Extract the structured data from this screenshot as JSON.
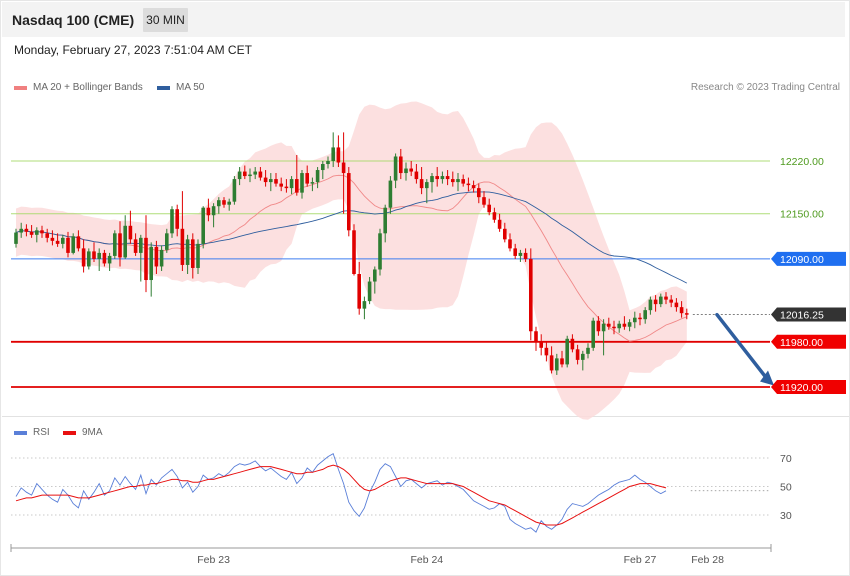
{
  "header": {
    "title": "Nasdaq 100 (CME)",
    "timeframe": "30 MIN"
  },
  "datetime": "Monday, February 27, 2023 7:51:04 AM CET",
  "legend": {
    "bollinger_label": "MA 20 + Bollinger Bands",
    "bollinger_color": "#f08080",
    "ma50_label": "MA 50",
    "ma50_color": "#2f5e9e",
    "copyright": "Research © 2023 Trading Central"
  },
  "rsi_legend": {
    "rsi_label": "RSI",
    "rsi_color": "#5a7fd8",
    "ma_label": "9MA",
    "ma_color": "#e81010"
  },
  "chart_data": [
    {
      "type": "candlestick",
      "title": "Nasdaq 100 (CME)",
      "ylim": [
        11880,
        12320
      ],
      "price_labels": {
        "r2": "12220.00",
        "r1": "12150.00",
        "pivot": "12090.00",
        "last": "12016.25",
        "s1": "11980.00",
        "s2": "11920.00"
      },
      "levels": [
        {
          "name": "r2",
          "value": 12220.0,
          "color": "#a6d96a",
          "label_color": "#4e9a1e",
          "style": "thin"
        },
        {
          "name": "r1",
          "value": 12150.0,
          "color": "#a6d96a",
          "label_color": "#4e9a1e",
          "style": "thin"
        },
        {
          "name": "pivot",
          "value": 12090.0,
          "color": "#3d7ef0",
          "label_color": "#ffffff",
          "box": "#1f6ff0",
          "style": "thin"
        },
        {
          "name": "last",
          "value": 12016.25,
          "color": "#555555",
          "label_color": "#ffffff",
          "box": "#333333",
          "style": "dotted"
        },
        {
          "name": "s1",
          "value": 11980.0,
          "color": "#e00000",
          "label_color": "#ffffff",
          "box": "#f00000",
          "style": "thick"
        },
        {
          "name": "s2",
          "value": 11920.0,
          "color": "#e00000",
          "label_color": "#ffffff",
          "box": "#f00000",
          "style": "thick"
        }
      ],
      "x_labels": [
        "Feb 23",
        "Feb 24",
        "Feb 27",
        "Feb 28"
      ],
      "x_label_index": [
        38,
        79,
        120,
        133
      ],
      "forecast_arrow": {
        "from_index": 135,
        "from_price": 12016,
        "to_index": 145,
        "to_price": 11922,
        "color": "#2f5e9e"
      },
      "candles": [
        [
          12110,
          12130,
          12105,
          12125
        ],
        [
          12125,
          12138,
          12118,
          12130
        ],
        [
          12130,
          12136,
          12120,
          12126
        ],
        [
          12126,
          12135,
          12118,
          12122
        ],
        [
          12122,
          12132,
          12112,
          12128
        ],
        [
          12128,
          12134,
          12118,
          12124
        ],
        [
          12124,
          12130,
          12112,
          12118
        ],
        [
          12118,
          12128,
          12108,
          12114
        ],
        [
          12114,
          12124,
          12106,
          12110
        ],
        [
          12110,
          12122,
          12104,
          12118
        ],
        [
          12118,
          12126,
          12092,
          12098
        ],
        [
          12098,
          12124,
          12096,
          12120
        ],
        [
          12120,
          12128,
          12100,
          12104
        ],
        [
          12104,
          12116,
          12072,
          12080
        ],
        [
          12080,
          12104,
          12076,
          12100
        ],
        [
          12100,
          12112,
          12086,
          12090
        ],
        [
          12090,
          12104,
          12074,
          12098
        ],
        [
          12098,
          12102,
          12080,
          12084
        ],
        [
          12084,
          12098,
          12074,
          12094
        ],
        [
          12094,
          12128,
          12090,
          12124
        ],
        [
          12124,
          12140,
          12080,
          12092
        ],
        [
          12092,
          12148,
          12090,
          12134
        ],
        [
          12134,
          12154,
          12110,
          12116
        ],
        [
          12116,
          12124,
          12094,
          12098
        ],
        [
          12098,
          12122,
          12060,
          12118
        ],
        [
          12118,
          12148,
          12046,
          12062
        ],
        [
          12062,
          12112,
          12040,
          12106
        ],
        [
          12106,
          12114,
          12070,
          12080
        ],
        [
          12080,
          12108,
          12074,
          12102
        ],
        [
          12102,
          12130,
          12098,
          12124
        ],
        [
          12124,
          12160,
          12118,
          12156
        ],
        [
          12156,
          12162,
          12120,
          12130
        ],
        [
          12130,
          12180,
          12074,
          12082
        ],
        [
          12082,
          12122,
          12070,
          12116
        ],
        [
          12116,
          12124,
          12064,
          12078
        ],
        [
          12078,
          12116,
          12070,
          12110
        ],
        [
          12110,
          12160,
          12104,
          12158
        ],
        [
          12158,
          12170,
          12140,
          12148
        ],
        [
          12148,
          12164,
          12132,
          12160
        ],
        [
          12160,
          12172,
          12150,
          12168
        ],
        [
          12168,
          12172,
          12158,
          12162
        ],
        [
          12162,
          12170,
          12154,
          12166
        ],
        [
          12166,
          12200,
          12162,
          12196
        ],
        [
          12196,
          12212,
          12188,
          12206
        ],
        [
          12206,
          12214,
          12196,
          12200
        ],
        [
          12200,
          12210,
          12192,
          12202
        ],
        [
          12202,
          12212,
          12196,
          12206
        ],
        [
          12206,
          12212,
          12194,
          12198
        ],
        [
          12198,
          12208,
          12186,
          12192
        ],
        [
          12192,
          12204,
          12180,
          12196
        ],
        [
          12196,
          12204,
          12186,
          12190
        ],
        [
          12190,
          12198,
          12180,
          12186
        ],
        [
          12186,
          12196,
          12178,
          12184
        ],
        [
          12184,
          12200,
          12176,
          12196
        ],
        [
          12196,
          12228,
          12174,
          12178
        ],
        [
          12178,
          12208,
          12170,
          12204
        ],
        [
          12204,
          12214,
          12186,
          12190
        ],
        [
          12190,
          12198,
          12180,
          12192
        ],
        [
          12192,
          12212,
          12184,
          12208
        ],
        [
          12208,
          12220,
          12196,
          12216
        ],
        [
          12216,
          12226,
          12210,
          12220
        ],
        [
          12220,
          12258,
          12212,
          12238
        ],
        [
          12238,
          12254,
          12212,
          12218
        ],
        [
          12218,
          12258,
          12150,
          12204
        ],
        [
          12204,
          12212,
          12120,
          12128
        ],
        [
          12128,
          12136,
          12068,
          12070
        ],
        [
          12070,
          12086,
          12016,
          12024
        ],
        [
          12024,
          12040,
          12010,
          12034
        ],
        [
          12034,
          12066,
          12030,
          12060
        ],
        [
          12060,
          12080,
          12044,
          12076
        ],
        [
          12076,
          12130,
          12068,
          12124
        ],
        [
          12124,
          12162,
          12112,
          12158
        ],
        [
          12158,
          12200,
          12150,
          12194
        ],
        [
          12194,
          12230,
          12184,
          12226
        ],
        [
          12226,
          12236,
          12196,
          12204
        ],
        [
          12204,
          12218,
          12194,
          12210
        ],
        [
          12210,
          12220,
          12200,
          12206
        ],
        [
          12206,
          12216,
          12190,
          12196
        ],
        [
          12196,
          12212,
          12176,
          12184
        ],
        [
          12184,
          12196,
          12164,
          12192
        ],
        [
          12192,
          12204,
          12178,
          12200
        ],
        [
          12200,
          12212,
          12186,
          12196
        ],
        [
          12196,
          12206,
          12190,
          12200
        ],
        [
          12200,
          12208,
          12188,
          12196
        ],
        [
          12196,
          12206,
          12186,
          12192
        ],
        [
          12192,
          12204,
          12180,
          12196
        ],
        [
          12196,
          12202,
          12186,
          12190
        ],
        [
          12190,
          12198,
          12180,
          12188
        ],
        [
          12188,
          12194,
          12178,
          12184
        ],
        [
          12184,
          12190,
          12164,
          12172
        ],
        [
          12172,
          12180,
          12158,
          12162
        ],
        [
          12162,
          12170,
          12148,
          12152
        ],
        [
          12152,
          12158,
          12138,
          12142
        ],
        [
          12142,
          12150,
          12126,
          12130
        ],
        [
          12130,
          12138,
          12112,
          12116
        ],
        [
          12116,
          12124,
          12100,
          12104
        ],
        [
          12104,
          12110,
          12090,
          12094
        ],
        [
          12094,
          12102,
          12086,
          12098
        ],
        [
          12098,
          12104,
          12086,
          12090
        ],
        [
          12090,
          12104,
          11982,
          11994
        ],
        [
          11994,
          12000,
          11968,
          11980
        ],
        [
          11980,
          11990,
          11962,
          11972
        ],
        [
          11972,
          11980,
          11954,
          11962
        ],
        [
          11962,
          11974,
          11938,
          11942
        ],
        [
          11942,
          11964,
          11936,
          11958
        ],
        [
          11958,
          11968,
          11946,
          11950
        ],
        [
          11950,
          11988,
          11946,
          11984
        ],
        [
          11984,
          11990,
          11966,
          11970
        ],
        [
          11970,
          11976,
          11950,
          11956
        ],
        [
          11956,
          11968,
          11942,
          11964
        ],
        [
          11964,
          11978,
          11958,
          11972
        ],
        [
          11972,
          12012,
          11968,
          12008
        ],
        [
          12008,
          12014,
          11988,
          11994
        ],
        [
          11994,
          12010,
          11962,
          12004
        ],
        [
          12004,
          12012,
          11996,
          12000
        ],
        [
          12000,
          12008,
          11990,
          11998
        ],
        [
          11998,
          12008,
          11992,
          12004
        ],
        [
          12004,
          12014,
          11996,
          12000
        ],
        [
          12000,
          12010,
          11994,
          12006
        ],
        [
          12006,
          12020,
          11998,
          12012
        ],
        [
          12012,
          12018,
          12002,
          12010
        ],
        [
          12010,
          12026,
          12004,
          12022
        ],
        [
          12022,
          12040,
          12016,
          12036
        ],
        [
          12036,
          12042,
          12020,
          12030
        ],
        [
          12030,
          12044,
          12026,
          12040
        ],
        [
          12040,
          12046,
          12030,
          12036
        ],
        [
          12036,
          12042,
          12026,
          12032
        ],
        [
          12032,
          12038,
          12020,
          12026
        ],
        [
          12026,
          12034,
          12012,
          12018
        ],
        [
          12018,
          12024,
          12010,
          12016
        ]
      ],
      "colors": {
        "up": "#2e7d32",
        "down": "#e00000",
        "band": "#fbdada",
        "ma20": "#f08888",
        "ma50": "#2f5e9e"
      }
    },
    {
      "type": "line",
      "title": "RSI",
      "ylim": [
        10,
        85
      ],
      "y_ticks": [
        70,
        50,
        30
      ],
      "y_tick_labels": [
        "70",
        "50",
        "30"
      ],
      "series": [
        {
          "name": "RSI",
          "color": "#5a7fd8",
          "values": [
            43,
            49,
            46,
            44,
            52,
            48,
            44,
            41,
            39,
            48,
            44,
            38,
            35,
            47,
            41,
            46,
            52,
            44,
            47,
            56,
            51,
            57,
            52,
            48,
            58,
            45,
            55,
            51,
            56,
            59,
            62,
            57,
            49,
            53,
            46,
            50,
            58,
            55,
            56,
            59,
            57,
            60,
            64,
            66,
            65,
            66,
            68,
            64,
            61,
            63,
            60,
            57,
            55,
            60,
            52,
            56,
            63,
            60,
            65,
            68,
            71,
            73,
            62,
            52,
            39,
            33,
            29,
            35,
            46,
            53,
            62,
            66,
            64,
            57,
            50,
            54,
            55,
            52,
            49,
            52,
            53,
            54,
            51,
            53,
            52,
            50,
            48,
            44,
            40,
            38,
            36,
            34,
            35,
            38,
            36,
            27,
            24,
            22,
            20,
            21,
            18,
            26,
            22,
            20,
            23,
            27,
            34,
            38,
            37,
            36,
            38,
            41,
            44,
            46,
            48,
            51,
            53,
            54,
            55,
            58,
            55,
            53,
            50,
            47,
            45,
            47
          ]
        },
        {
          "name": "9MA",
          "color": "#e81010",
          "values": [
            40,
            41,
            42,
            42,
            43,
            44,
            44,
            44,
            44,
            44,
            44,
            43,
            42,
            42,
            42,
            43,
            44,
            45,
            46,
            47,
            48,
            49,
            50,
            50,
            51,
            51,
            52,
            52,
            53,
            54,
            55,
            55,
            54,
            54,
            53,
            53,
            54,
            55,
            55,
            56,
            57,
            58,
            59,
            60,
            61,
            62,
            63,
            64,
            64,
            64,
            63,
            62,
            61,
            60,
            59,
            59,
            60,
            60,
            61,
            62,
            64,
            65,
            64,
            62,
            59,
            55,
            51,
            48,
            47,
            48,
            50,
            52,
            54,
            55,
            56,
            56,
            55,
            54,
            53,
            52,
            52,
            52,
            52,
            52,
            52,
            51,
            50,
            48,
            46,
            44,
            42,
            40,
            39,
            38,
            37,
            35,
            33,
            31,
            29,
            27,
            25,
            24,
            23,
            23,
            23,
            24,
            26,
            28,
            30,
            32,
            34,
            36,
            38,
            40,
            42,
            44,
            46,
            48,
            50,
            51,
            52,
            52,
            52,
            51,
            50,
            49
          ]
        }
      ]
    }
  ]
}
